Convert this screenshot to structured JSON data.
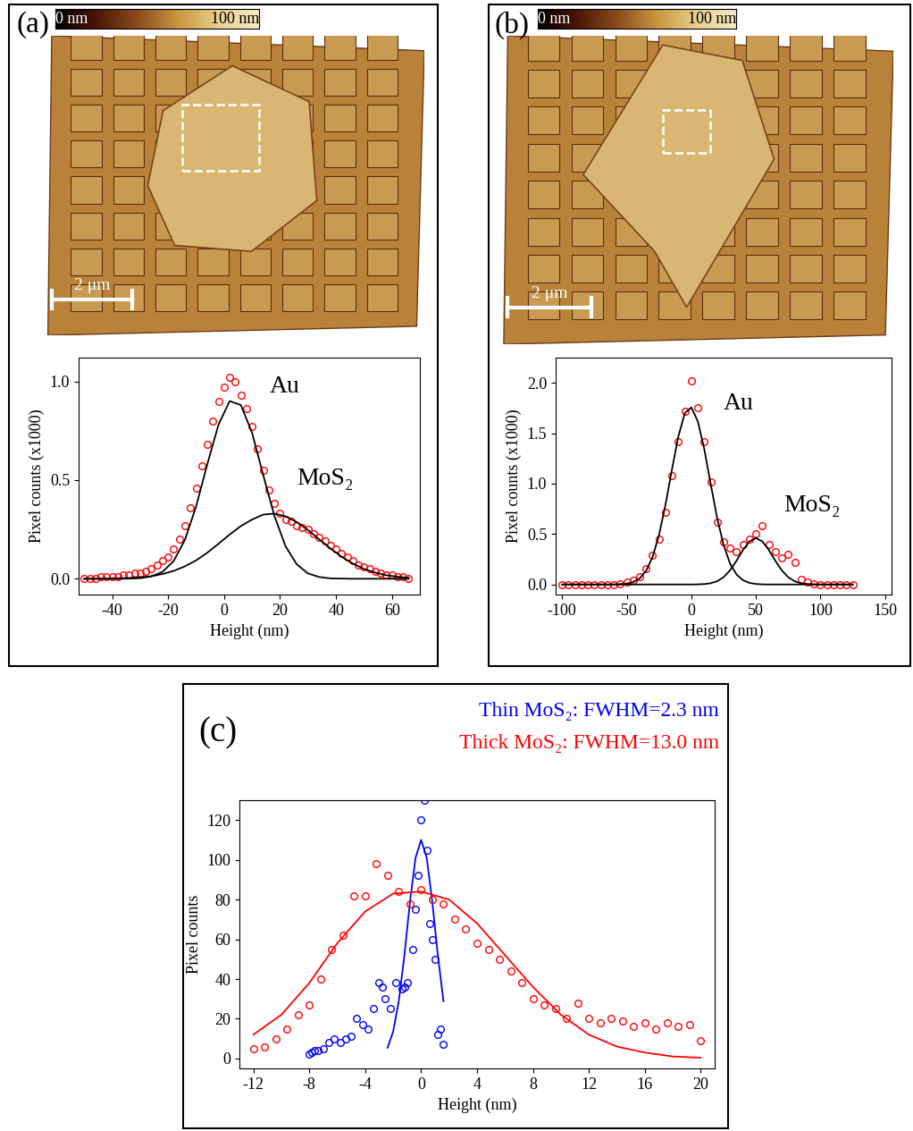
{
  "chart_data": [
    {
      "type": "scatter",
      "panel": "(a)",
      "image": {
        "colorbar": {
          "range": [
            0,
            100
          ],
          "ticks": [
            {
              "value": 0,
              "label": "0 nm"
            },
            {
              "value": 100,
              "label": "100 nm"
            }
          ]
        },
        "scale_bar": "2 μm"
      },
      "x_label": "Height (nm)",
      "y_label": "Pixel counts (x1000)",
      "annotations": [
        "Au",
        "MoS₂"
      ],
      "xlim": [
        -52,
        70
      ],
      "xticks": [
        -40,
        -20,
        0,
        20,
        40,
        60
      ],
      "ylim": [
        -0.08,
        1.12
      ],
      "yticks": [
        {
          "value": 0,
          "label": "0.0"
        },
        {
          "value": 0.5,
          "label": "0.5"
        },
        {
          "value": 1,
          "label": "1.0"
        }
      ],
      "series": [
        {
          "type": "scatter",
          "color": "#ff0000",
          "marker": "circle",
          "x": [
            -50,
            -48,
            -46,
            -44,
            -42,
            -40,
            -38,
            -36,
            -34,
            -32,
            -30,
            -28,
            -26,
            -24,
            -22,
            -20,
            -18,
            -16,
            -14,
            -12,
            -10,
            -8,
            -6,
            -4,
            -2,
            0,
            2,
            4,
            6,
            8,
            10,
            12,
            14,
            16,
            18,
            20,
            22,
            24,
            26,
            28,
            30,
            32,
            34,
            36,
            38,
            40,
            42,
            44,
            46,
            48,
            50,
            52,
            54,
            56,
            58,
            60,
            62,
            64,
            66
          ],
          "values": [
            0.0,
            0.0,
            0.0,
            0.01,
            0.01,
            0.01,
            0.01,
            0.02,
            0.02,
            0.03,
            0.03,
            0.04,
            0.05,
            0.07,
            0.09,
            0.11,
            0.15,
            0.2,
            0.27,
            0.36,
            0.46,
            0.57,
            0.68,
            0.8,
            0.9,
            0.97,
            1.02,
            1.0,
            0.93,
            0.86,
            0.77,
            0.66,
            0.55,
            0.45,
            0.38,
            0.33,
            0.3,
            0.29,
            0.27,
            0.26,
            0.25,
            0.23,
            0.21,
            0.19,
            0.17,
            0.15,
            0.13,
            0.11,
            0.09,
            0.07,
            0.06,
            0.05,
            0.04,
            0.03,
            0.02,
            0.02,
            0.01,
            0.01,
            0.0
          ]
        },
        {
          "type": "line",
          "color": "#000000",
          "line_style": "solid",
          "x": [
            -50,
            -46,
            -42,
            -38,
            -34,
            -30,
            -26,
            -22,
            -18,
            -14,
            -10,
            -6,
            -2,
            2,
            6,
            10,
            14,
            18,
            22,
            26,
            30,
            34,
            38,
            42,
            46,
            50,
            54,
            58,
            62,
            66
          ],
          "values": [
            0,
            0,
            0,
            0,
            0.001,
            0.003,
            0.012,
            0.035,
            0.09,
            0.197,
            0.366,
            0.58,
            0.78,
            0.9,
            0.88,
            0.74,
            0.525,
            0.318,
            0.164,
            0.073,
            0.027,
            0.009,
            0.002,
            0.001,
            0,
            0,
            0,
            0,
            0,
            0
          ]
        },
        {
          "type": "line",
          "color": "#000000",
          "line_style": "solid",
          "x": [
            -50,
            -46,
            -42,
            -38,
            -34,
            -30,
            -26,
            -22,
            -18,
            -14,
            -10,
            -6,
            -2,
            2,
            6,
            10,
            14,
            18,
            22,
            26,
            30,
            34,
            38,
            42,
            46,
            50,
            54,
            58,
            62,
            66
          ],
          "values": [
            0,
            0,
            0.001,
            0.002,
            0.004,
            0.007,
            0.013,
            0.024,
            0.04,
            0.063,
            0.093,
            0.132,
            0.177,
            0.224,
            0.267,
            0.3,
            0.325,
            0.33,
            0.316,
            0.287,
            0.247,
            0.2,
            0.154,
            0.112,
            0.077,
            0.05,
            0.031,
            0.018,
            0.01,
            0.005
          ]
        }
      ]
    },
    {
      "type": "scatter",
      "panel": "(b)",
      "image": {
        "colorbar": {
          "range": [
            0,
            100
          ],
          "ticks": [
            {
              "value": 0,
              "label": "0 nm"
            },
            {
              "value": 100,
              "label": "100 nm"
            }
          ]
        },
        "scale_bar": "2 μm"
      },
      "x_label": "Height (nm)",
      "y_label": "Pixel counts (x1000)",
      "annotations": [
        "Au",
        "MoS₂"
      ],
      "xlim": [
        -105,
        155
      ],
      "xticks": [
        -100,
        -50,
        0,
        50,
        100,
        150
      ],
      "ylim": [
        -0.1,
        2.25
      ],
      "yticks": [
        {
          "value": 0,
          "label": "0.0"
        },
        {
          "value": 0.5,
          "label": "0.5"
        },
        {
          "value": 1,
          "label": "1.0"
        },
        {
          "value": 1.5,
          "label": "1.5"
        },
        {
          "value": 2,
          "label": "2.0"
        }
      ],
      "series": [
        {
          "type": "scatter",
          "color": "#ff0000",
          "marker": "circle",
          "x": [
            -100,
            -95,
            -90,
            -85,
            -80,
            -75,
            -70,
            -65,
            -60,
            -55,
            -50,
            -45,
            -40,
            -35,
            -30,
            -25,
            -20,
            -15,
            -10,
            -5,
            0,
            5,
            10,
            15,
            20,
            25,
            30,
            35,
            40,
            45,
            50,
            55,
            60,
            65,
            70,
            75,
            80,
            85,
            90,
            95,
            100,
            105,
            110,
            115,
            120,
            125
          ],
          "values": [
            0,
            0,
            0,
            0,
            0,
            0,
            0,
            0,
            0,
            0.01,
            0.02,
            0.04,
            0.08,
            0.16,
            0.29,
            0.45,
            0.72,
            1.08,
            1.42,
            1.72,
            2.02,
            1.75,
            1.42,
            1.02,
            0.62,
            0.42,
            0.36,
            0.33,
            0.4,
            0.45,
            0.5,
            0.58,
            0.4,
            0.33,
            0.26,
            0.3,
            0.22,
            0.05,
            0.02,
            0.01,
            0,
            0,
            0,
            0,
            0,
            0
          ]
        },
        {
          "type": "line",
          "color": "#000000",
          "line_style": "solid",
          "x": [
            -100,
            -95,
            -90,
            -85,
            -80,
            -75,
            -70,
            -65,
            -60,
            -55,
            -50,
            -45,
            -40,
            -35,
            -30,
            -25,
            -20,
            -15,
            -10,
            -5,
            0,
            5,
            10,
            15,
            20,
            25,
            30,
            35,
            40,
            45,
            50,
            55,
            60,
            65,
            70,
            75,
            80,
            85,
            90,
            95,
            100,
            105,
            110,
            115,
            120,
            125
          ],
          "values": [
            0,
            0,
            0,
            0,
            0,
            0,
            0,
            0,
            0,
            0.003,
            0.009,
            0.024,
            0.06,
            0.135,
            0.272,
            0.49,
            0.79,
            1.14,
            1.47,
            1.7,
            1.756,
            1.62,
            1.345,
            0.996,
            0.66,
            0.39,
            0.207,
            0.099,
            0.042,
            0.016,
            0.005,
            0.001,
            0,
            0,
            0,
            0,
            0,
            0,
            0,
            0,
            0,
            0,
            0,
            0,
            0,
            0
          ]
        },
        {
          "type": "line",
          "color": "#000000",
          "line_style": "solid",
          "x": [
            -100,
            -95,
            -90,
            -85,
            -80,
            -75,
            -70,
            -65,
            -60,
            -55,
            -50,
            -45,
            -40,
            -35,
            -30,
            -25,
            -20,
            -15,
            -10,
            -5,
            0,
            5,
            10,
            15,
            20,
            25,
            30,
            35,
            40,
            45,
            50,
            55,
            60,
            65,
            70,
            75,
            80,
            85,
            90,
            95,
            100,
            105,
            110,
            115,
            120,
            125
          ],
          "values": [
            0,
            0,
            0,
            0,
            0,
            0,
            0,
            0,
            0,
            0,
            0,
            0,
            0,
            0,
            0,
            0,
            0,
            0,
            0,
            0,
            0,
            0.001,
            0.004,
            0.012,
            0.032,
            0.072,
            0.141,
            0.236,
            0.342,
            0.427,
            0.46,
            0.427,
            0.342,
            0.236,
            0.141,
            0.072,
            0.032,
            0.012,
            0.004,
            0.001,
            0,
            0,
            0,
            0,
            0,
            0
          ]
        }
      ]
    },
    {
      "type": "scatter",
      "panel": "(c)",
      "x_label": "Height (nm)",
      "y_label": "Pixel counts",
      "xlim": [
        -13,
        21
      ],
      "xticks": [
        -12,
        -8,
        -4,
        0,
        4,
        8,
        12,
        16,
        20
      ],
      "ylim": [
        -5,
        130
      ],
      "yticks": [
        0,
        20,
        40,
        60,
        80,
        100,
        120
      ],
      "series": [
        {
          "type": "scatter",
          "name": "Thin MoS₂: FWHM=2.3 nm",
          "color": "#0000ff",
          "marker": "circle",
          "x": [
            -8,
            -7.8,
            -7.6,
            -7.4,
            -7,
            -6.6,
            -6.2,
            -5.8,
            -5.4,
            -5,
            -4.6,
            -4.2,
            -3.8,
            -3.4,
            -3,
            -2.8,
            -2.6,
            -2.2,
            -1.8,
            -1.4,
            -1.2,
            -1,
            -0.6,
            -0.4,
            -0.2,
            0,
            0.2,
            0.4,
            0.6,
            0.8,
            1,
            1.2,
            1.4,
            1.6
          ],
          "values": [
            2,
            3,
            4,
            4,
            5,
            8,
            10,
            8,
            10,
            11,
            20,
            17,
            15,
            25,
            38,
            36,
            30,
            25,
            38,
            35,
            36,
            38,
            55,
            75,
            92,
            120,
            130,
            105,
            68,
            60,
            50,
            12,
            15,
            7
          ]
        },
        {
          "type": "line",
          "color": "#0000ff",
          "line_style": "solid",
          "x": [
            -2.4,
            -2,
            -1.6,
            -1.2,
            -0.8,
            -0.4,
            0,
            0.4,
            0.8,
            1.2,
            1.6
          ],
          "values": [
            5.4,
            13.6,
            28.8,
            51.7,
            78.7,
            101,
            110,
            101,
            78.7,
            51.7,
            28.8
          ]
        },
        {
          "type": "scatter",
          "name": "Thick MoS₂: FWHM=13.0 nm",
          "color": "#ff0000",
          "marker": "circle",
          "x": [
            -12,
            -11.2,
            -10.4,
            -9.6,
            -8.8,
            -8,
            -7.2,
            -6.4,
            -5.6,
            -4.8,
            -4,
            -3.2,
            -2.4,
            -1.6,
            -0.8,
            0,
            0.8,
            1.6,
            2.4,
            3.2,
            4,
            4.8,
            5.6,
            6.4,
            7.2,
            8,
            8.8,
            9.6,
            10.4,
            11.2,
            12,
            12.8,
            13.6,
            14.4,
            15.2,
            16,
            16.8,
            17.6,
            18.4,
            19.2,
            20
          ],
          "values": [
            5,
            6,
            10,
            15,
            22,
            27,
            40,
            55,
            62,
            82,
            82,
            98,
            92,
            84,
            78,
            85,
            80,
            78,
            70,
            65,
            58,
            55,
            50,
            44,
            38,
            30,
            27,
            25,
            20,
            28,
            20,
            18,
            20,
            19,
            16,
            18,
            15,
            18,
            16,
            17,
            9
          ]
        },
        {
          "type": "line",
          "color": "#ff0000",
          "line_style": "solid",
          "x": [
            -12,
            -10,
            -8,
            -6,
            -4,
            -2,
            0,
            2,
            4,
            6,
            8,
            10,
            12,
            14,
            16,
            18,
            20
          ],
          "values": [
            12,
            22,
            38,
            58,
            74,
            83,
            84,
            80,
            68,
            52,
            36,
            22,
            12,
            6,
            3,
            1,
            0.4
          ]
        }
      ]
    }
  ]
}
